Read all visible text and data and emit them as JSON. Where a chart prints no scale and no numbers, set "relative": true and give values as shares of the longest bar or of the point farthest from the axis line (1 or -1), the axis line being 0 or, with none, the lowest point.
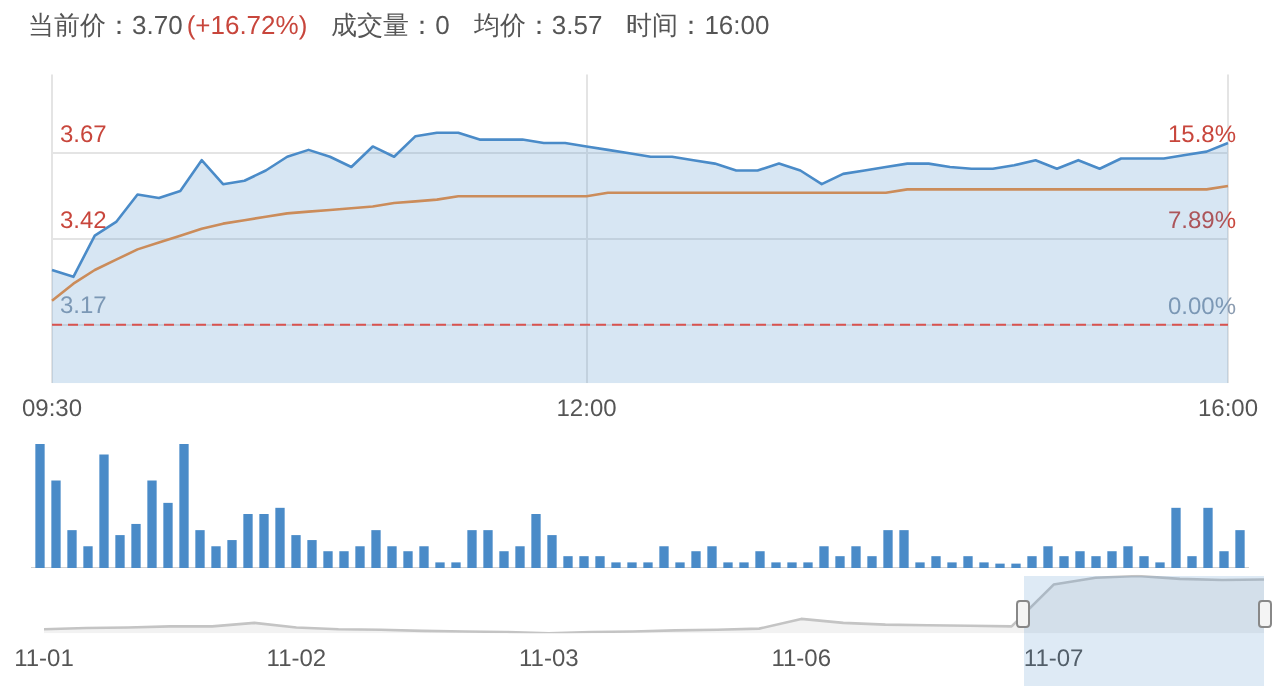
{
  "chart_data": [
    {
      "type": "line",
      "annotations": [
        "当前价：3.70",
        "(+16.72%)",
        "成交量：0",
        "均价：3.57",
        "时间：16:00"
      ],
      "categories": [
        "09:30",
        null,
        null,
        null,
        null,
        null,
        null,
        null,
        null,
        null,
        null,
        null,
        null,
        null,
        null,
        null,
        null,
        null,
        null,
        null,
        null,
        null,
        null,
        null,
        null,
        "12:00",
        null,
        null,
        null,
        null,
        null,
        null,
        null,
        null,
        null,
        null,
        null,
        null,
        null,
        null,
        null,
        null,
        null,
        null,
        null,
        null,
        null,
        null,
        null,
        null,
        null,
        null,
        null,
        null,
        null,
        "16:00"
      ],
      "series": [
        {
          "type": "area",
          "color": "#4a8bc8",
          "values": [
            3.33,
            3.31,
            3.43,
            3.47,
            3.55,
            3.54,
            3.56,
            3.65,
            3.58,
            3.59,
            3.62,
            3.66,
            3.68,
            3.66,
            3.63,
            3.69,
            3.66,
            3.72,
            3.73,
            3.73,
            3.71,
            3.71,
            3.71,
            3.7,
            3.7,
            3.69,
            3.68,
            3.67,
            3.66,
            3.66,
            3.65,
            3.64,
            3.62,
            3.62,
            3.64,
            3.62,
            3.58,
            3.61,
            3.62,
            3.63,
            3.64,
            3.64,
            3.63,
            3.625,
            3.625,
            3.635,
            3.65,
            3.625,
            3.65,
            3.625,
            3.655,
            3.655,
            3.655,
            3.665,
            3.675,
            3.7
          ]
        },
        {
          "type": "line",
          "color": "#f08c3c",
          "values": [
            3.24,
            3.29,
            3.33,
            3.36,
            3.39,
            3.41,
            3.43,
            3.45,
            3.465,
            3.475,
            3.485,
            3.495,
            3.5,
            3.505,
            3.51,
            3.515,
            3.525,
            3.53,
            3.535,
            3.545,
            3.545,
            3.545,
            3.545,
            3.545,
            3.545,
            3.545,
            3.555,
            3.555,
            3.555,
            3.555,
            3.555,
            3.555,
            3.555,
            3.555,
            3.555,
            3.555,
            3.555,
            3.555,
            3.555,
            3.555,
            3.565,
            3.565,
            3.565,
            3.565,
            3.565,
            3.565,
            3.565,
            3.565,
            3.565,
            3.565,
            3.565,
            3.565,
            3.565,
            3.565,
            3.565,
            3.575
          ]
        }
      ],
      "ylim": [
        3.0,
        3.9
      ],
      "yticks": [
        3.17,
        3.42,
        3.67
      ],
      "y2lim": [
        -5.36,
        23.03
      ],
      "y2ticks": [
        {
          "value": 0,
          "label": "0.00%"
        },
        {
          "value": 7.89,
          "label": "7.89%"
        },
        {
          "value": 15.77,
          "label": "15.8%"
        }
      ],
      "grid": true,
      "ref_lines": [
        {
          "axis": "y",
          "value": 3.17,
          "color": "#d9534f",
          "line_style": "dashed"
        }
      ]
    },
    {
      "type": "bar",
      "relative": true,
      "tick_labels": false,
      "color": "#4a8bc8",
      "categories": [
        null,
        null,
        null,
        null,
        null,
        null,
        null,
        null,
        null,
        null,
        null,
        null,
        null,
        null,
        null,
        null,
        null,
        null,
        null,
        null,
        null,
        null,
        null,
        null,
        null,
        null,
        null,
        null,
        null,
        null,
        null,
        null,
        null,
        null,
        null,
        null,
        null,
        null,
        null,
        null,
        null,
        null,
        null,
        null,
        null,
        null,
        null,
        null,
        null,
        null,
        null,
        null,
        null,
        null,
        null,
        null,
        null,
        null,
        null,
        null,
        null,
        null,
        null,
        null,
        null,
        null,
        null,
        null,
        null,
        null,
        null,
        null,
        null,
        null,
        null,
        null
      ],
      "values": [
        1,
        0.7,
        0.3,
        0.17,
        0.91,
        0.26,
        0.35,
        0.7,
        0.52,
        1,
        0.3,
        0.17,
        0.22,
        0.43,
        0.43,
        0.48,
        0.26,
        0.22,
        0.13,
        0.13,
        0.17,
        0.3,
        0.17,
        0.13,
        0.17,
        0.04,
        0.04,
        0.3,
        0.3,
        0.13,
        0.17,
        0.43,
        0.26,
        0.09,
        0.09,
        0.09,
        0.04,
        0.04,
        0.04,
        0.17,
        0.04,
        0.13,
        0.17,
        0.04,
        0.04,
        0.13,
        0.04,
        0.04,
        0.04,
        0.17,
        0.09,
        0.17,
        0.09,
        0.3,
        0.3,
        0.04,
        0.09,
        0.04,
        0.09,
        0.04,
        0.03,
        0.03,
        0.09,
        0.17,
        0.09,
        0.13,
        0.09,
        0.13,
        0.17,
        0.09,
        0.04,
        0.48,
        0.09,
        0.48,
        0.13,
        0.3
      ]
    },
    {
      "type": "area",
      "relative": true,
      "color": "#c4c4c4",
      "categories": [
        "11-01",
        null,
        null,
        null,
        null,
        null,
        "11-02",
        null,
        null,
        null,
        null,
        null,
        "11-03",
        null,
        null,
        null,
        null,
        null,
        "11-06",
        null,
        null,
        null,
        null,
        null,
        "11-07",
        null,
        null,
        null,
        null,
        null
      ],
      "values": [
        0.07,
        0.09,
        0.1,
        0.12,
        0.12,
        0.18,
        0.1,
        0.07,
        0.06,
        0.04,
        0.03,
        0.02,
        0,
        0.02,
        0.03,
        0.05,
        0.06,
        0.08,
        0.25,
        0.18,
        0.15,
        0.14,
        0.13,
        0.12,
        0.85,
        0.97,
        1,
        0.95,
        0.93,
        0.94
      ]
    }
  ]
}
